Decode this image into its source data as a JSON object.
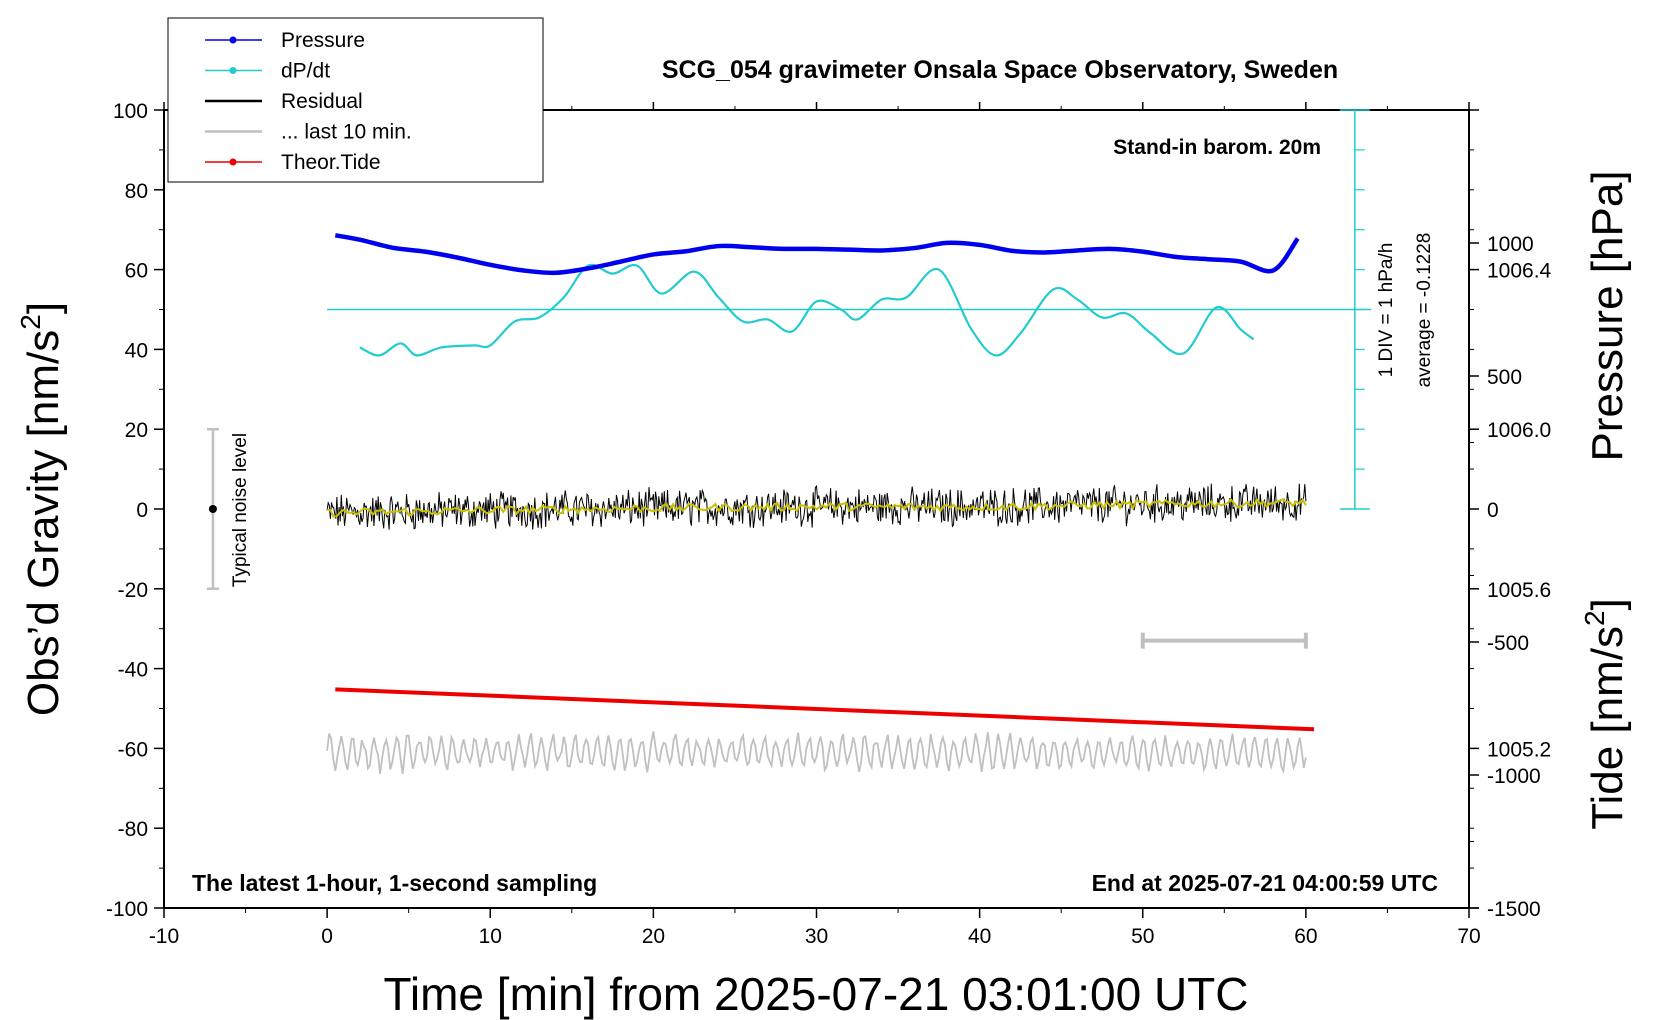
{
  "chart_data": {
    "type": "line",
    "title": "SCG_054 gravimeter Onsala Space Observatory, Sweden",
    "xlabel": "Time [min] from 2025-07-21 03:01:00 UTC",
    "ylabel_left": "Obs’d Gravity [nm/s",
    "ylabel_left_sup": "2",
    "ylabel_left_tail": "]",
    "ylabel_right_pressure": "Pressure [hPa]",
    "ylabel_right_tide": "Tide [nm/s",
    "ylabel_right_tide_sup": "2",
    "ylabel_right_tide_tail": "]",
    "xlim": [
      -10,
      70
    ],
    "ylim": [
      -100,
      100
    ],
    "x_ticks": [
      "-10",
      "0",
      "10",
      "20",
      "30",
      "40",
      "50",
      "60",
      "70"
    ],
    "y_ticks": [
      "-100",
      "-80",
      "-60",
      "-40",
      "-20",
      "0",
      "20",
      "40",
      "60",
      "80",
      "100"
    ],
    "pressure_axis": {
      "range": [
        1004.8,
        1006.8
      ],
      "ticks": [
        "1005.2",
        "1005.6",
        "1006.0",
        "1006.4"
      ]
    },
    "tide_axis": {
      "range": [
        -1500,
        1500
      ],
      "ticks": [
        "-1500",
        "-1000",
        "-500",
        "0",
        "500",
        "1000"
      ]
    },
    "annotations": {
      "stand_in": "Stand-in barom. 20m",
      "latest": "The latest 1-hour, 1-second sampling",
      "end_at": "End at 2025-07-21 04:00:59 UTC",
      "noise": "Typical noise level",
      "div": "1 DIV = 1 hPa/h",
      "average": "average = -0.1228"
    },
    "legend": [
      {
        "label": "Pressure",
        "color": "#0000ee",
        "marker": true
      },
      {
        "label": "dP/dt",
        "color": "#22cccc",
        "marker": true
      },
      {
        "label": "Residual",
        "color": "#000000",
        "marker": false
      },
      {
        "label": "... last 10 min.",
        "color": "#c0c0c0",
        "marker": false
      },
      {
        "label": "Theor.Tide",
        "color": "#ee0000",
        "marker": true
      }
    ],
    "series": [
      {
        "name": "Pressure",
        "color": "#0000ee",
        "x": [
          0.5,
          2,
          4,
          6,
          8,
          10,
          12,
          14,
          16,
          18,
          20,
          22,
          24,
          26,
          28,
          30,
          32,
          34,
          36,
          38,
          40,
          42,
          44,
          46,
          48,
          50,
          52,
          54,
          56,
          58,
          59.5
        ],
        "y": [
          68.6,
          67.5,
          65.5,
          64.5,
          63,
          61.2,
          59.8,
          59.2,
          60.3,
          62,
          63.8,
          64.6,
          65.9,
          65.6,
          65.2,
          65.2,
          65,
          64.8,
          65.4,
          66.7,
          66.2,
          64.7,
          64.3,
          64.8,
          65.2,
          64.5,
          63.2,
          62.6,
          62,
          59.8,
          67.8
        ]
      },
      {
        "name": "dP/dt",
        "color": "#22cccc",
        "x": [
          2,
          3.2,
          4.5,
          5.5,
          7,
          9,
          10,
          11.5,
          13,
          14.5,
          16,
          17.5,
          19,
          20.5,
          22.5,
          24,
          25.5,
          27,
          28.5,
          30,
          31.5,
          32.5,
          34,
          35.5,
          37.5,
          39.5,
          41,
          42.5,
          44.5,
          46,
          47.5,
          49,
          50.5,
          52.5,
          54.5,
          56,
          56.8
        ],
        "y": [
          40.5,
          38.5,
          41.5,
          38.5,
          40.5,
          41,
          41,
          47,
          48,
          53,
          61,
          59,
          61,
          54,
          59.5,
          53,
          47,
          47.5,
          44.5,
          52,
          50,
          47.5,
          52.5,
          53,
          60,
          45,
          38.5,
          44,
          55,
          52.5,
          48,
          49,
          44,
          39,
          50.5,
          45,
          42.5
        ]
      },
      {
        "name": "Residual",
        "color": "#000000",
        "x": [
          0,
          10,
          20,
          30,
          40,
          50,
          60
        ],
        "y": [
          -1,
          -0.3,
          0.2,
          0.6,
          0.5,
          1.2,
          1.6
        ]
      },
      {
        "name": "Theor.Tide",
        "color": "#ee0000",
        "x": [
          0.5,
          60.5
        ],
        "y": [
          -45.2,
          -55.2
        ]
      },
      {
        "name": "... last 10 min.",
        "color": "#c0c0c0",
        "x": [
          0,
          60
        ],
        "y": [
          -61,
          -61
        ]
      }
    ],
    "dpdt_average_level": 50,
    "noise_bar": {
      "x": -7,
      "center": 0,
      "low": -20,
      "high": 20
    },
    "ten_min_bar": {
      "x_start": 50,
      "x_end": 60,
      "y": -33
    }
  }
}
